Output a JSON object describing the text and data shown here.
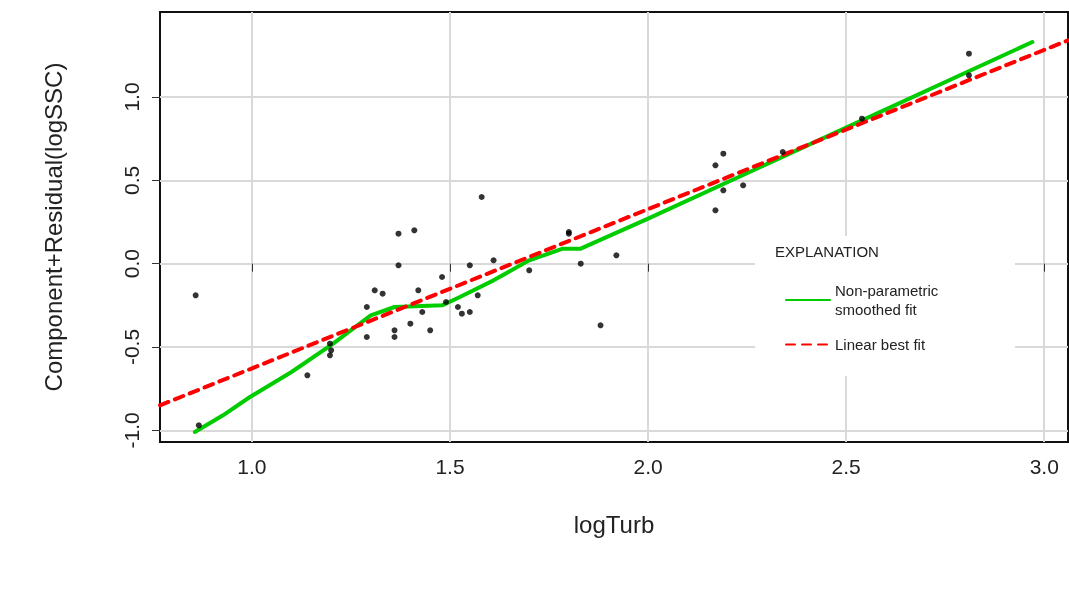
{
  "chart_data": {
    "type": "scatter",
    "xlabel": "logTurb",
    "ylabel": "Component+Residual(logSSC)",
    "legend_title": "EXPLANATION",
    "xlim": [
      0.768,
      3.06
    ],
    "ylim": [
      -1.07,
      1.51
    ],
    "xticks": [
      {
        "value": 1,
        "label": "1.0"
      },
      {
        "value": 1.5,
        "label": "1.5"
      },
      {
        "value": 2,
        "label": "2.0"
      },
      {
        "value": 2.5,
        "label": "2.5"
      },
      {
        "value": 3,
        "label": "3.0"
      }
    ],
    "yticks": [
      {
        "value": -1,
        "label": "-1.0"
      },
      {
        "value": -0.5,
        "label": "-0.5"
      },
      {
        "value": 0,
        "label": "0.0"
      },
      {
        "value": 0.5,
        "label": "0.5"
      },
      {
        "value": 1,
        "label": "1.0"
      }
    ],
    "grid": true,
    "legend": "right",
    "series": [
      {
        "type": "scatter",
        "color": "#000000",
        "marker": "circle",
        "x": [
          0.858,
          0.866,
          1.14,
          1.197,
          1.2,
          1.197,
          1.29,
          1.29,
          1.31,
          1.33,
          1.37,
          1.37,
          1.36,
          1.36,
          1.41,
          1.42,
          1.43,
          1.4,
          1.45,
          1.48,
          1.49,
          1.52,
          1.53,
          1.55,
          1.55,
          1.57,
          1.58,
          1.61,
          1.8,
          1.8,
          1.7,
          1.83,
          1.92,
          1.88,
          2.17,
          2.19,
          2.19,
          2.17,
          2.24,
          2.34,
          2.54,
          2.81,
          2.81
        ],
        "values": [
          -0.19,
          -0.97,
          -0.67,
          -0.48,
          -0.52,
          -0.55,
          -0.26,
          -0.44,
          -0.16,
          -0.18,
          0.18,
          -0.01,
          -0.4,
          -0.44,
          0.2,
          -0.16,
          -0.29,
          -0.36,
          -0.4,
          -0.08,
          -0.23,
          -0.26,
          -0.3,
          -0.29,
          -0.01,
          -0.19,
          0.4,
          0.02,
          0.18,
          0.19,
          -0.04,
          0.0,
          0.05,
          -0.37,
          0.59,
          0.66,
          0.44,
          0.32,
          0.47,
          0.67,
          0.87,
          1.26,
          1.13
        ]
      },
      {
        "type": "line",
        "name": "Non-parametric smoothed fit",
        "color": "#00cc00",
        "line_style": "solid",
        "x": [
          0.856,
          0.927,
          0.995,
          1.1,
          1.205,
          1.3,
          1.36,
          1.48,
          1.525,
          1.61,
          1.7,
          1.785,
          1.83,
          2.0,
          2.485,
          2.97
        ],
        "values": [
          -1.01,
          -0.91,
          -0.8,
          -0.65,
          -0.48,
          -0.31,
          -0.26,
          -0.25,
          -0.2,
          -0.1,
          0.02,
          0.09,
          0.09,
          0.27,
          0.8,
          1.33
        ]
      },
      {
        "type": "line",
        "name": "Linear best fit",
        "color": "#ff0000",
        "line_style": "dashed",
        "x": [
          0.768,
          3.06
        ],
        "values": [
          -0.85,
          1.34
        ]
      }
    ]
  }
}
